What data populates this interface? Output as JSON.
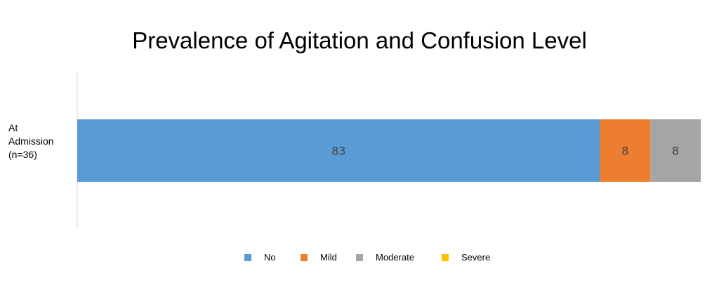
{
  "chart_data": {
    "type": "bar",
    "orientation": "horizontal",
    "stacked": true,
    "title": "Prevalence of Agitation and Confusion Level",
    "categories": [
      [
        "At",
        "Admission",
        "(n=36)"
      ]
    ],
    "series": [
      {
        "name": "No",
        "values": [
          83
        ],
        "color": "#5b9bd5",
        "label": "83"
      },
      {
        "name": "Mild",
        "values": [
          8
        ],
        "color": "#ed7d31",
        "label": "8"
      },
      {
        "name": "Moderate",
        "values": [
          8
        ],
        "color": "#a5a5a5",
        "label": "8"
      },
      {
        "name": "Severe",
        "values": [
          0
        ],
        "color": "#ffc000",
        "label": ""
      }
    ],
    "xlim": [
      0,
      99
    ],
    "grid": false,
    "legend_position": "bottom"
  }
}
